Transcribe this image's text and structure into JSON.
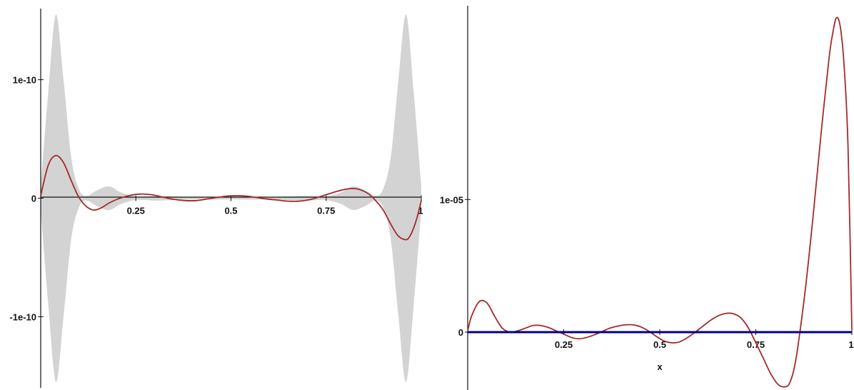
{
  "chart_data": [
    {
      "id": "left",
      "type": "line",
      "title": "",
      "xlabel": "",
      "ylabel": "",
      "xlim": [
        0,
        1
      ],
      "ylim": [
        -1.6e-10,
        1.6e-10
      ],
      "grid": false,
      "legend": "none",
      "xticks": [
        {
          "value": 0.25,
          "label": "0.25"
        },
        {
          "value": 0.5,
          "label": "0.5"
        },
        {
          "value": 0.75,
          "label": "0.75"
        },
        {
          "value": 1,
          "label": "1"
        }
      ],
      "yticks": [
        {
          "value": 1e-10,
          "label": "1e-10"
        },
        {
          "value": 0,
          "label": "0"
        },
        {
          "value": -1e-10,
          "label": "-1e-10"
        }
      ],
      "band": {
        "color": "#d3d3d3",
        "x": [
          0,
          0.02,
          0.04,
          0.06,
          0.08,
          0.1,
          0.12,
          0.15,
          0.18,
          0.21,
          0.25,
          0.3,
          0.35,
          0.4,
          0.45,
          0.5,
          0.55,
          0.6,
          0.65,
          0.7,
          0.75,
          0.79,
          0.82,
          0.85,
          0.88,
          0.9,
          0.92,
          0.94,
          0.96,
          0.98,
          1
        ],
        "upper": [
          1e-11,
          9e-11,
          1.55e-10,
          1e-10,
          3.5e-11,
          8e-12,
          2e-12,
          7e-12,
          1e-11,
          5e-12,
          1.5e-12,
          2e-12,
          1.5e-12,
          1e-12,
          1.2e-12,
          1e-12,
          1.2e-12,
          1e-12,
          1.5e-12,
          2e-12,
          1.5e-12,
          5e-12,
          1e-11,
          7e-12,
          2e-12,
          8e-12,
          3.5e-11,
          1e-10,
          1.55e-10,
          9e-11,
          1e-11
        ],
        "lower": [
          -1e-11,
          -9e-11,
          -1.55e-10,
          -1e-10,
          -3.5e-11,
          -8e-12,
          -2e-12,
          -7e-12,
          -1e-11,
          -5e-12,
          -1.5e-12,
          -2e-12,
          -1.5e-12,
          -1e-12,
          -1.2e-12,
          -1e-12,
          -1.2e-12,
          -1e-12,
          -1.5e-12,
          -2e-12,
          -1.5e-12,
          -5e-12,
          -1e-11,
          -7e-12,
          -2e-12,
          -8e-12,
          -3.5e-11,
          -1e-10,
          -1.55e-10,
          -9e-11,
          -1e-11
        ]
      },
      "series": [
        {
          "color": "#a52a2a",
          "x": [
            0,
            0.02,
            0.04,
            0.06,
            0.08,
            0.1,
            0.12,
            0.14,
            0.16,
            0.18,
            0.2,
            0.23,
            0.26,
            0.29,
            0.32,
            0.35,
            0.38,
            0.41,
            0.44,
            0.47,
            0.5,
            0.53,
            0.56,
            0.59,
            0.62,
            0.65,
            0.68,
            0.71,
            0.74,
            0.77,
            0.8,
            0.83,
            0.86,
            0.88,
            0.9,
            0.92,
            0.94,
            0.96,
            0.97,
            0.98,
            0.99,
            1
          ],
          "y": [
            2e-12,
            2.8e-11,
            3.6e-11,
            3e-11,
            1.5e-11,
            1e-12,
            -7e-12,
            -1e-11,
            -8e-12,
            -4e-12,
            -1e-12,
            2e-12,
            3.5e-12,
            3e-12,
            1e-12,
            -1e-12,
            -2e-12,
            -2e-12,
            -5e-13,
            1e-12,
            2e-12,
            2e-12,
            1e-12,
            -5e-13,
            -1.5e-12,
            -2.5e-12,
            -2.5e-12,
            -1e-12,
            2e-12,
            5e-12,
            7.5e-12,
            8e-12,
            4e-12,
            -2e-12,
            -1e-11,
            -2.2e-11,
            -3.2e-11,
            -3.5e-11,
            -3.2e-11,
            -2.5e-11,
            -1.5e-11,
            -2e-12
          ]
        }
      ]
    },
    {
      "id": "right",
      "type": "line",
      "title": "",
      "xlabel": "x",
      "ylabel": "",
      "xlim": [
        0,
        1
      ],
      "ylim": [
        -4.2e-06,
        2.45e-05
      ],
      "grid": false,
      "legend": "none",
      "xticks": [
        {
          "value": 0.25,
          "label": "0.25"
        },
        {
          "value": 0.5,
          "label": "0.5"
        },
        {
          "value": 0.75,
          "label": "0.75"
        },
        {
          "value": 1,
          "label": "1"
        }
      ],
      "yticks": [
        {
          "value": 1e-05,
          "label": "1e-05"
        },
        {
          "value": 0,
          "label": "0"
        }
      ],
      "series": [
        {
          "color": "#a52a2a",
          "x": [
            0,
            0.01,
            0.03,
            0.05,
            0.07,
            0.09,
            0.11,
            0.13,
            0.15,
            0.17,
            0.19,
            0.21,
            0.23,
            0.25,
            0.27,
            0.29,
            0.31,
            0.33,
            0.35,
            0.37,
            0.39,
            0.41,
            0.43,
            0.45,
            0.47,
            0.49,
            0.51,
            0.53,
            0.55,
            0.57,
            0.59,
            0.61,
            0.63,
            0.65,
            0.67,
            0.69,
            0.71,
            0.73,
            0.75,
            0.77,
            0.79,
            0.81,
            0.83,
            0.84,
            0.85,
            0.86,
            0.88,
            0.9,
            0.92,
            0.94,
            0.95,
            0.96,
            0.97,
            0.98,
            0.99,
            1
          ],
          "y": [
            1e-07,
            1.2e-06,
            2.3e-06,
            2.2e-06,
            1.2e-06,
            3e-07,
            0.0,
            1e-07,
            3e-07,
            5e-07,
            5e-07,
            3.5e-07,
            1e-07,
            -1.5e-07,
            -4e-07,
            -5e-07,
            -4e-07,
            -2e-07,
            5e-08,
            3e-07,
            4.5e-07,
            5.5e-07,
            5.5e-07,
            4e-07,
            1e-07,
            -3e-07,
            -6.5e-07,
            -8e-07,
            -7.5e-07,
            -4.5e-07,
            -5e-08,
            4e-07,
            8.5e-07,
            1.2e-06,
            1.4e-06,
            1.4e-06,
            1.1e-06,
            3.5e-07,
            -8e-07,
            -2e-06,
            -3.2e-06,
            -4e-06,
            -4.1e-06,
            -3.7e-06,
            -2.7e-06,
            -1e-06,
            3.5e-06,
            9e-06,
            1.5e-05,
            2.05e-05,
            2.25e-05,
            2.37e-05,
            2.3e-05,
            2e-05,
            1.4e-05,
            2e-07
          ]
        },
        {
          "color": "#00008b",
          "x": [
            0,
            1
          ],
          "y": [
            0,
            0
          ]
        }
      ]
    }
  ]
}
